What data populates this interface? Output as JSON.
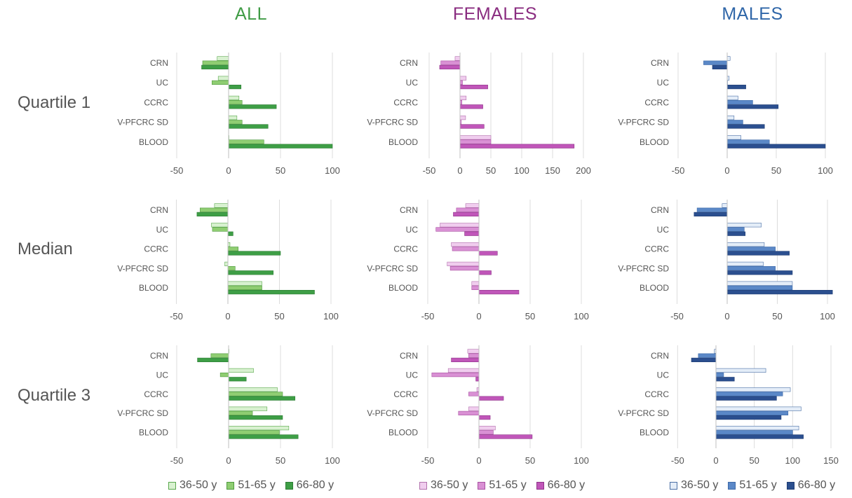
{
  "column_titles": [
    "ALL",
    "FEMALES",
    "MALES"
  ],
  "row_titles": [
    "Quartile 1",
    "Median",
    "Quartile 3"
  ],
  "colors": {
    "ALL": {
      "title": "#3f9b45",
      "series": [
        "#d8f1d0",
        "#8fcd72",
        "#3e9e46"
      ],
      "stroke": [
        "#5aa84d",
        "#4f9a3f",
        "#2e7d35"
      ]
    },
    "FEMALES": {
      "title": "#8a2d80",
      "series": [
        "#f0cdee",
        "#d990d4",
        "#c056b9"
      ],
      "stroke": [
        "#b272ad",
        "#a852a2",
        "#8e3488"
      ]
    },
    "MALES": {
      "title": "#2f66a8",
      "series": [
        "#e4edf8",
        "#5b88c7",
        "#2b4f8f"
      ],
      "stroke": [
        "#4a6fa5",
        "#3e6aa8",
        "#1f3d73"
      ]
    }
  },
  "legends": [
    {
      "group": "ALL",
      "labels": [
        "36-50 y",
        "51-65 y",
        "66-80 y"
      ]
    },
    {
      "group": "FEMALES",
      "labels": [
        "36-50 y",
        "51-65 y",
        "66-80 y"
      ]
    },
    {
      "group": "MALES",
      "labels": [
        "36-50 y",
        "51-65 y",
        "66-80 y"
      ]
    }
  ],
  "chart_data": [
    {
      "type": "bar",
      "orientation": "horizontal",
      "group": "ALL",
      "row": "Quartile 1",
      "categories": [
        "CRN",
        "UC",
        "CCRC",
        "V-PFCRC SD",
        "BLOOD"
      ],
      "xlim": [
        -50,
        100
      ],
      "ticks": [
        -50,
        0,
        50,
        100
      ],
      "series": [
        {
          "name": "36-50 y",
          "values": [
            -11,
            -10,
            10,
            8,
            0
          ]
        },
        {
          "name": "51-65 y",
          "values": [
            -25,
            -16,
            13,
            13,
            34
          ]
        },
        {
          "name": "66-80 y",
          "values": [
            -26,
            12,
            46,
            38,
            100
          ]
        }
      ]
    },
    {
      "type": "bar",
      "orientation": "horizontal",
      "group": "FEMALES",
      "row": "Quartile 1",
      "categories": [
        "CRN",
        "UC",
        "CCRC",
        "V-PFCRC SD",
        "BLOOD"
      ],
      "xlim": [
        -50,
        200
      ],
      "ticks": [
        -50,
        0,
        50,
        100,
        150,
        200
      ],
      "series": [
        {
          "name": "36-50 y",
          "values": [
            -8,
            10,
            10,
            9,
            50
          ]
        },
        {
          "name": "51-65 y",
          "values": [
            -31,
            4,
            3,
            2,
            50
          ]
        },
        {
          "name": "66-80 y",
          "values": [
            -33,
            45,
            37,
            39,
            185
          ]
        }
      ]
    },
    {
      "type": "bar",
      "orientation": "horizontal",
      "group": "MALES",
      "row": "Quartile 1",
      "categories": [
        "CRN",
        "UC",
        "CCRC",
        "V-PFCRC SD",
        "BLOOD"
      ],
      "xlim": [
        -50,
        100
      ],
      "ticks": [
        -50,
        0,
        50,
        100
      ],
      "series": [
        {
          "name": "36-50 y",
          "values": [
            3,
            2,
            11,
            7,
            14
          ]
        },
        {
          "name": "51-65 y",
          "values": [
            -24,
            0,
            26,
            16,
            43
          ]
        },
        {
          "name": "66-80 y",
          "values": [
            -15,
            19,
            52,
            38,
            100
          ]
        }
      ]
    },
    {
      "type": "bar",
      "orientation": "horizontal",
      "group": "ALL",
      "row": "Median",
      "categories": [
        "CRN",
        "UC",
        "CCRC",
        "V-PFCRC SD",
        "BLOOD"
      ],
      "xlim": [
        -50,
        100
      ],
      "ticks": [
        -50,
        0,
        50,
        100
      ],
      "series": [
        {
          "name": "36-50 y",
          "values": [
            -13,
            -16,
            2,
            -3,
            33
          ]
        },
        {
          "name": "51-65 y",
          "values": [
            -27,
            -15,
            10,
            7,
            33
          ]
        },
        {
          "name": "66-80 y",
          "values": [
            -30,
            5,
            51,
            44,
            84
          ]
        }
      ]
    },
    {
      "type": "bar",
      "orientation": "horizontal",
      "group": "FEMALES",
      "row": "Median",
      "categories": [
        "CRN",
        "UC",
        "CCRC",
        "V-PFCRC SD",
        "BLOOD"
      ],
      "xlim": [
        -50,
        100
      ],
      "ticks": [
        -50,
        0,
        50,
        100
      ],
      "series": [
        {
          "name": "36-50 y",
          "values": [
            -13,
            -38,
            -27,
            -31,
            -7
          ]
        },
        {
          "name": "51-65 y",
          "values": [
            -22,
            -42,
            -26,
            -28,
            -7
          ]
        },
        {
          "name": "66-80 y",
          "values": [
            -25,
            -14,
            18,
            12,
            39
          ]
        }
      ]
    },
    {
      "type": "bar",
      "orientation": "horizontal",
      "group": "MALES",
      "row": "Median",
      "categories": [
        "CRN",
        "UC",
        "CCRC",
        "V-PFCRC SD",
        "BLOOD"
      ],
      "xlim": [
        -50,
        100
      ],
      "ticks": [
        -50,
        0,
        50,
        100
      ],
      "series": [
        {
          "name": "36-50 y",
          "values": [
            -5,
            34,
            37,
            36,
            65
          ]
        },
        {
          "name": "51-65 y",
          "values": [
            -30,
            17,
            48,
            48,
            65
          ]
        },
        {
          "name": "66-80 y",
          "values": [
            -33,
            18,
            62,
            65,
            105
          ]
        }
      ]
    },
    {
      "type": "bar",
      "orientation": "horizontal",
      "group": "ALL",
      "row": "Quartile 3",
      "categories": [
        "CRN",
        "UC",
        "CCRC",
        "V-PFCRC SD",
        "BLOOD"
      ],
      "xlim": [
        -50,
        100
      ],
      "ticks": [
        -50,
        0,
        50,
        100
      ],
      "series": [
        {
          "name": "36-50 y",
          "values": [
            0,
            24,
            47,
            37,
            58
          ]
        },
        {
          "name": "51-65 y",
          "values": [
            -17,
            -8,
            52,
            23,
            49
          ]
        },
        {
          "name": "66-80 y",
          "values": [
            -30,
            17,
            64,
            52,
            67
          ]
        }
      ]
    },
    {
      "type": "bar",
      "orientation": "horizontal",
      "group": "FEMALES",
      "row": "Quartile 3",
      "categories": [
        "CRN",
        "UC",
        "CCRC",
        "V-PFCRC SD",
        "BLOOD"
      ],
      "xlim": [
        -50,
        100
      ],
      "ticks": [
        -50,
        0,
        50,
        100
      ],
      "series": [
        {
          "name": "36-50 y",
          "values": [
            -11,
            -30,
            -2,
            -10,
            16
          ]
        },
        {
          "name": "51-65 y",
          "values": [
            -10,
            -46,
            -10,
            -20,
            14
          ]
        },
        {
          "name": "66-80 y",
          "values": [
            -27,
            -3,
            24,
            11,
            52
          ]
        }
      ]
    },
    {
      "type": "bar",
      "orientation": "horizontal",
      "group": "MALES",
      "row": "Quartile 3",
      "categories": [
        "CRN",
        "UC",
        "CCRC",
        "V-PFCRC SD",
        "BLOOD"
      ],
      "xlim": [
        -50,
        150
      ],
      "ticks": [
        -50,
        0,
        50,
        100,
        150
      ],
      "series": [
        {
          "name": "36-50 y",
          "values": [
            -2,
            65,
            97,
            111,
            108
          ]
        },
        {
          "name": "51-65 y",
          "values": [
            -23,
            10,
            87,
            94,
            100
          ]
        },
        {
          "name": "66-80 y",
          "values": [
            -32,
            24,
            79,
            85,
            114
          ]
        }
      ]
    }
  ]
}
